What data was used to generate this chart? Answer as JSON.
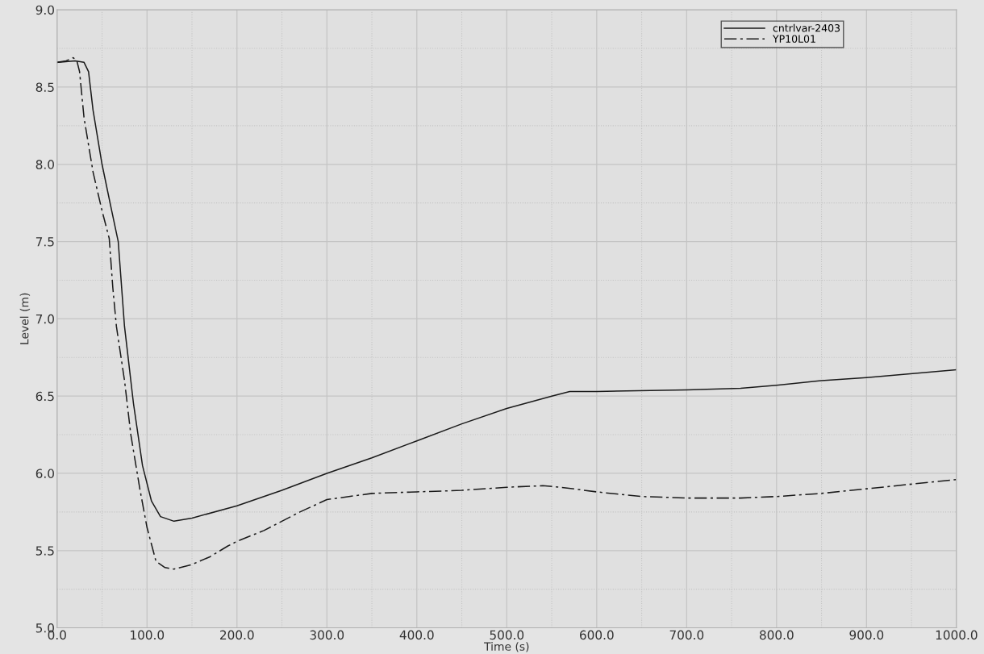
{
  "chart_data": {
    "type": "line",
    "xlabel": "Time (s)",
    "ylabel": "Level (m)",
    "xlim": [
      0,
      1000
    ],
    "ylim": [
      5.0,
      9.0
    ],
    "xticks": [
      {
        "value": 0,
        "label": "0.0"
      },
      {
        "value": 100,
        "label": "100.0"
      },
      {
        "value": 200,
        "label": "200.0"
      },
      {
        "value": 300,
        "label": "300.0"
      },
      {
        "value": 400,
        "label": "400.0"
      },
      {
        "value": 500,
        "label": "500.0"
      },
      {
        "value": 600,
        "label": "600.0"
      },
      {
        "value": 700,
        "label": "700.0"
      },
      {
        "value": 800,
        "label": "800.0"
      },
      {
        "value": 900,
        "label": "900.0"
      },
      {
        "value": 1000,
        "label": "1000.0"
      }
    ],
    "yticks": [
      {
        "value": 5.0,
        "label": "5.0"
      },
      {
        "value": 5.5,
        "label": "5.5"
      },
      {
        "value": 6.0,
        "label": "6.0"
      },
      {
        "value": 6.5,
        "label": "6.5"
      },
      {
        "value": 7.0,
        "label": "7.0"
      },
      {
        "value": 7.5,
        "label": "7.5"
      },
      {
        "value": 8.0,
        "label": "8.0"
      },
      {
        "value": 8.5,
        "label": "8.5"
      },
      {
        "value": 9.0,
        "label": "9.0"
      }
    ],
    "grid": true,
    "legend": "top right",
    "marker": "none",
    "series": [
      {
        "name": "cntrlvar-2403",
        "color": "#1a1a1a",
        "line_style": "solid",
        "x": [
          0,
          20,
          30,
          35,
          40,
          50,
          60,
          68,
          75,
          85,
          95,
          105,
          115,
          130,
          150,
          200,
          250,
          300,
          350,
          400,
          450,
          500,
          550,
          570,
          600,
          700,
          760,
          800,
          850,
          900,
          1000
        ],
        "values": [
          8.66,
          8.67,
          8.66,
          8.6,
          8.35,
          8.0,
          7.72,
          7.5,
          6.95,
          6.45,
          6.05,
          5.82,
          5.72,
          5.69,
          5.71,
          5.79,
          5.89,
          6.0,
          6.1,
          6.21,
          6.32,
          6.42,
          6.5,
          6.53,
          6.53,
          6.54,
          6.55,
          6.57,
          6.6,
          6.62,
          6.67
        ]
      },
      {
        "name": "YP10L01",
        "color": "#1a1a1a",
        "line_style": "dashed",
        "x": [
          0,
          10,
          18,
          22,
          25,
          30,
          40,
          50,
          58,
          62,
          66,
          75,
          82,
          92,
          100,
          110,
          120,
          130,
          150,
          170,
          190,
          200,
          230,
          250,
          270,
          300,
          350,
          400,
          450,
          500,
          540,
          560,
          600,
          650,
          700,
          760,
          800,
          850,
          900,
          950,
          1000
        ],
        "values": [
          8.66,
          8.67,
          8.69,
          8.67,
          8.6,
          8.3,
          7.95,
          7.7,
          7.52,
          7.2,
          6.95,
          6.6,
          6.25,
          5.9,
          5.65,
          5.43,
          5.39,
          5.38,
          5.41,
          5.46,
          5.53,
          5.56,
          5.63,
          5.69,
          5.75,
          5.83,
          5.87,
          5.88,
          5.89,
          5.91,
          5.92,
          5.91,
          5.88,
          5.85,
          5.84,
          5.84,
          5.85,
          5.87,
          5.9,
          5.93,
          5.96
        ]
      }
    ]
  }
}
